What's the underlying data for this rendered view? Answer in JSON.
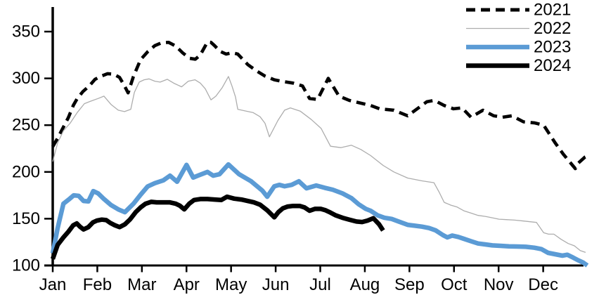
{
  "chart_data": {
    "type": "line",
    "title": "",
    "legend": {
      "position": "top-right",
      "entries": [
        "2021",
        "2022",
        "2023",
        "2024"
      ]
    },
    "x_axis": {
      "unit": "month",
      "tick_labels": [
        "Jan",
        "Feb",
        "Mar",
        "Apr",
        "May",
        "Jun",
        "Jul",
        "Aug",
        "Sep",
        "Oct",
        "Nov",
        "Dec"
      ]
    },
    "y_axis": {
      "min": 100,
      "max": 375,
      "tick_interval": 50,
      "tick_labels": [
        "100",
        "150",
        "200",
        "250",
        "300",
        "350"
      ]
    },
    "grid": "off",
    "series": [
      {
        "name": "2021",
        "color": "#000000",
        "line_style": "dashed",
        "line_width": 4.6,
        "points": [
          [
            0,
            227
          ],
          [
            0.11,
            236
          ],
          [
            0.24,
            248
          ],
          [
            0.35,
            258
          ],
          [
            0.46,
            271
          ],
          [
            0.55,
            278.5
          ],
          [
            0.68,
            286
          ],
          [
            0.82,
            292
          ],
          [
            0.95,
            299
          ],
          [
            1.07,
            302
          ],
          [
            1.23,
            305
          ],
          [
            1.37,
            304.5
          ],
          [
            1.5,
            301
          ],
          [
            1.61,
            292
          ],
          [
            1.69,
            284.5
          ],
          [
            1.81,
            302
          ],
          [
            1.97,
            320
          ],
          [
            2.13,
            328.5
          ],
          [
            2.29,
            335
          ],
          [
            2.44,
            338
          ],
          [
            2.6,
            338.5
          ],
          [
            2.76,
            334.5
          ],
          [
            2.92,
            327
          ],
          [
            3.07,
            321.5
          ],
          [
            3.2,
            320.5
          ],
          [
            3.31,
            325
          ],
          [
            3.47,
            339
          ],
          [
            3.55,
            338.5
          ],
          [
            3.63,
            335
          ],
          [
            3.75,
            329
          ],
          [
            3.89,
            326
          ],
          [
            4.02,
            327.5
          ],
          [
            4.15,
            326
          ],
          [
            4.38,
            314.5
          ],
          [
            4.57,
            308
          ],
          [
            4.76,
            302.5
          ],
          [
            4.97,
            298.5
          ],
          [
            5.12,
            297
          ],
          [
            5.39,
            295
          ],
          [
            5.6,
            292
          ],
          [
            5.76,
            278.5
          ],
          [
            5.94,
            277.5
          ],
          [
            6.18,
            300
          ],
          [
            6.42,
            281
          ],
          [
            6.65,
            276.5
          ],
          [
            6.91,
            273.5
          ],
          [
            7.13,
            271
          ],
          [
            7.33,
            267.5
          ],
          [
            7.65,
            266
          ],
          [
            7.96,
            260
          ],
          [
            8.39,
            275
          ],
          [
            8.56,
            276.5
          ],
          [
            8.78,
            271
          ],
          [
            8.99,
            267.5
          ],
          [
            9.18,
            268.5
          ],
          [
            9.38,
            258.5
          ],
          [
            9.65,
            266
          ],
          [
            9.89,
            260
          ],
          [
            10.09,
            258.5
          ],
          [
            10.3,
            260
          ],
          [
            10.56,
            253.5
          ],
          [
            10.8,
            252.5
          ],
          [
            11.01,
            250
          ],
          [
            11.27,
            231
          ],
          [
            11.45,
            219
          ],
          [
            11.59,
            211
          ],
          [
            11.72,
            203.5
          ],
          [
            11.79,
            209.5
          ],
          [
            11.94,
            216
          ],
          [
            11.98,
            217
          ]
        ]
      },
      {
        "name": "2022",
        "color": "#ADADAD",
        "line_style": "solid",
        "line_width": 1.3,
        "points": [
          [
            0,
            211
          ],
          [
            0.11,
            231
          ],
          [
            0.24,
            244
          ],
          [
            0.39,
            252
          ],
          [
            0.55,
            263.5
          ],
          [
            0.71,
            273
          ],
          [
            0.87,
            276
          ],
          [
            1.02,
            278.5
          ],
          [
            1.15,
            281
          ],
          [
            1.31,
            272
          ],
          [
            1.47,
            266
          ],
          [
            1.61,
            264.5
          ],
          [
            1.75,
            267
          ],
          [
            1.83,
            285
          ],
          [
            1.94,
            296
          ],
          [
            2.05,
            298.5
          ],
          [
            2.16,
            299.5
          ],
          [
            2.29,
            297
          ],
          [
            2.41,
            296
          ],
          [
            2.57,
            299
          ],
          [
            2.73,
            294.5
          ],
          [
            2.89,
            291
          ],
          [
            3.04,
            297
          ],
          [
            3.19,
            298.5
          ],
          [
            3.31,
            295
          ],
          [
            3.42,
            289
          ],
          [
            3.55,
            277
          ],
          [
            3.66,
            281
          ],
          [
            3.8,
            290
          ],
          [
            3.94,
            302
          ],
          [
            4.02,
            292
          ],
          [
            4.1,
            280
          ],
          [
            4.15,
            267
          ],
          [
            4.34,
            265
          ],
          [
            4.49,
            263.5
          ],
          [
            4.65,
            259
          ],
          [
            4.76,
            252
          ],
          [
            4.86,
            237.5
          ],
          [
            5.05,
            255
          ],
          [
            5.2,
            266
          ],
          [
            5.33,
            268.5
          ],
          [
            5.55,
            265
          ],
          [
            5.8,
            256
          ],
          [
            6.02,
            246.5
          ],
          [
            6.23,
            227.5
          ],
          [
            6.46,
            226
          ],
          [
            6.7,
            228.5
          ],
          [
            6.91,
            224
          ],
          [
            7.13,
            217.5
          ],
          [
            7.41,
            207
          ],
          [
            7.65,
            200
          ],
          [
            7.96,
            193.5
          ],
          [
            8.28,
            190.5
          ],
          [
            8.55,
            188.5
          ],
          [
            8.67,
            178
          ],
          [
            8.78,
            167.5
          ],
          [
            8.93,
            164.5
          ],
          [
            9.07,
            162.5
          ],
          [
            9.22,
            158.5
          ],
          [
            9.38,
            156
          ],
          [
            9.54,
            153.5
          ],
          [
            9.7,
            152.5
          ],
          [
            9.86,
            151
          ],
          [
            10.01,
            149.5
          ],
          [
            10.17,
            149
          ],
          [
            10.36,
            148.5
          ],
          [
            10.56,
            147.5
          ],
          [
            10.85,
            146
          ],
          [
            11.01,
            135
          ],
          [
            11.12,
            133.5
          ],
          [
            11.24,
            133.5
          ],
          [
            11.4,
            128
          ],
          [
            11.56,
            123.5
          ],
          [
            11.7,
            121
          ],
          [
            11.83,
            116
          ],
          [
            11.95,
            114
          ]
        ]
      },
      {
        "name": "2023",
        "color": "#5B9BD5",
        "line_style": "solid",
        "line_width": 6.5,
        "points": [
          [
            0,
            113
          ],
          [
            0.11,
            140
          ],
          [
            0.24,
            166
          ],
          [
            0.36,
            170.5
          ],
          [
            0.47,
            175
          ],
          [
            0.58,
            174.5
          ],
          [
            0.69,
            169
          ],
          [
            0.8,
            168.5
          ],
          [
            0.91,
            179.5
          ],
          [
            1.02,
            177
          ],
          [
            1.15,
            171
          ],
          [
            1.31,
            164.5
          ],
          [
            1.47,
            160
          ],
          [
            1.62,
            157
          ],
          [
            1.81,
            166
          ],
          [
            1.97,
            175.5
          ],
          [
            2.13,
            184.5
          ],
          [
            2.29,
            188
          ],
          [
            2.48,
            191
          ],
          [
            2.63,
            196
          ],
          [
            2.79,
            189.5
          ],
          [
            3.0,
            207.5
          ],
          [
            3.15,
            194
          ],
          [
            3.28,
            196.5
          ],
          [
            3.47,
            200
          ],
          [
            3.6,
            196
          ],
          [
            3.74,
            197.5
          ],
          [
            3.94,
            208
          ],
          [
            4.18,
            197.5
          ],
          [
            4.45,
            190
          ],
          [
            4.7,
            180
          ],
          [
            4.81,
            173.5
          ],
          [
            4.97,
            184.7
          ],
          [
            5.08,
            186.2
          ],
          [
            5.2,
            184.7
          ],
          [
            5.36,
            186.2
          ],
          [
            5.52,
            190
          ],
          [
            5.69,
            182.5
          ],
          [
            5.91,
            185.5
          ],
          [
            6.1,
            183
          ],
          [
            6.28,
            181
          ],
          [
            6.5,
            177
          ],
          [
            6.7,
            172
          ],
          [
            6.86,
            165.5
          ],
          [
            7.02,
            160.5
          ],
          [
            7.13,
            158.5
          ],
          [
            7.29,
            153.5
          ],
          [
            7.44,
            151
          ],
          [
            7.6,
            149.8
          ],
          [
            7.76,
            147
          ],
          [
            7.96,
            143.5
          ],
          [
            8.12,
            142.5
          ],
          [
            8.28,
            141.5
          ],
          [
            8.44,
            140
          ],
          [
            8.59,
            137.5
          ],
          [
            8.75,
            132.5
          ],
          [
            8.85,
            130
          ],
          [
            8.96,
            132
          ],
          [
            9.1,
            130.5
          ],
          [
            9.22,
            128.5
          ],
          [
            9.38,
            126
          ],
          [
            9.54,
            123.5
          ],
          [
            9.7,
            122.5
          ],
          [
            9.86,
            121.5
          ],
          [
            10.04,
            121
          ],
          [
            10.23,
            120.5
          ],
          [
            10.42,
            120.3
          ],
          [
            10.61,
            120
          ],
          [
            10.8,
            119
          ],
          [
            10.96,
            117.5
          ],
          [
            11.11,
            113.5
          ],
          [
            11.27,
            112
          ],
          [
            11.43,
            110.5
          ],
          [
            11.54,
            111.5
          ],
          [
            11.67,
            108.5
          ],
          [
            11.79,
            105.5
          ],
          [
            11.9,
            103
          ],
          [
            11.99,
            100
          ]
        ]
      },
      {
        "name": "2024",
        "color": "#000000",
        "line_style": "solid",
        "line_width": 6.5,
        "points": [
          [
            0,
            107
          ],
          [
            0.11,
            122
          ],
          [
            0.24,
            130
          ],
          [
            0.35,
            136
          ],
          [
            0.46,
            143
          ],
          [
            0.54,
            145
          ],
          [
            0.61,
            141.5
          ],
          [
            0.69,
            138.5
          ],
          [
            0.8,
            141
          ],
          [
            0.9,
            146
          ],
          [
            0.99,
            148
          ],
          [
            1.1,
            149
          ],
          [
            1.2,
            148.5
          ],
          [
            1.29,
            145.5
          ],
          [
            1.39,
            143
          ],
          [
            1.5,
            141
          ],
          [
            1.62,
            144
          ],
          [
            1.73,
            149
          ],
          [
            1.86,
            157
          ],
          [
            1.97,
            162
          ],
          [
            2.08,
            166
          ],
          [
            2.21,
            168
          ],
          [
            2.33,
            167.5
          ],
          [
            2.48,
            167.5
          ],
          [
            2.62,
            167.5
          ],
          [
            2.76,
            166
          ],
          [
            2.85,
            164
          ],
          [
            2.95,
            160
          ],
          [
            3.06,
            166
          ],
          [
            3.17,
            170
          ],
          [
            3.31,
            171
          ],
          [
            3.47,
            171
          ],
          [
            3.63,
            170.5
          ],
          [
            3.78,
            170
          ],
          [
            3.91,
            173.5
          ],
          [
            4.07,
            171.5
          ],
          [
            4.23,
            170.5
          ],
          [
            4.37,
            169
          ],
          [
            4.51,
            167.5
          ],
          [
            4.65,
            165
          ],
          [
            4.81,
            159
          ],
          [
            4.97,
            151.5
          ],
          [
            5.06,
            157
          ],
          [
            5.16,
            161
          ],
          [
            5.27,
            163
          ],
          [
            5.39,
            163.7
          ],
          [
            5.54,
            163.7
          ],
          [
            5.65,
            162
          ],
          [
            5.76,
            158.5
          ],
          [
            5.88,
            160.5
          ],
          [
            6.01,
            160.5
          ],
          [
            6.12,
            159
          ],
          [
            6.23,
            156.5
          ],
          [
            6.35,
            153.5
          ],
          [
            6.5,
            151
          ],
          [
            6.65,
            149
          ],
          [
            6.81,
            147
          ],
          [
            6.94,
            146.5
          ],
          [
            7.06,
            148
          ],
          [
            7.19,
            150.5
          ],
          [
            7.32,
            144
          ],
          [
            7.41,
            137.5
          ]
        ]
      }
    ]
  }
}
